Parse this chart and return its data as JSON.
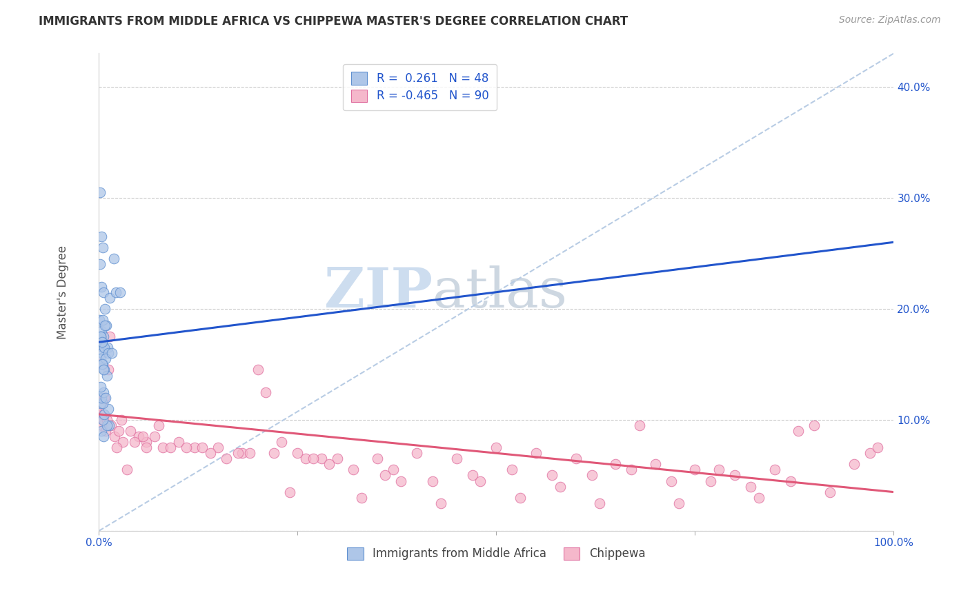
{
  "title": "IMMIGRANTS FROM MIDDLE AFRICA VS CHIPPEWA MASTER'S DEGREE CORRELATION CHART",
  "source": "Source: ZipAtlas.com",
  "ylabel": "Master's Degree",
  "blue_R": 0.261,
  "blue_N": 48,
  "pink_R": -0.465,
  "pink_N": 90,
  "blue_color": "#aec6e8",
  "pink_color": "#f5b8cb",
  "blue_edge_color": "#6090d0",
  "pink_edge_color": "#e070a0",
  "blue_line_color": "#2255cc",
  "pink_line_color": "#e05878",
  "ref_line_color": "#b8cce4",
  "watermark_zip_color": "#c5d8ed",
  "watermark_atlas_color": "#c5d0dc",
  "legend_label_blue": "Immigrants from Middle Africa",
  "legend_label_pink": "Chippewa",
  "xlim": [
    0.0,
    100.0
  ],
  "ylim": [
    0.0,
    43.0
  ],
  "blue_trend_x0": 0.0,
  "blue_trend_y0": 17.0,
  "blue_trend_x1": 100.0,
  "blue_trend_y1": 26.0,
  "pink_trend_x0": 0.0,
  "pink_trend_y0": 10.5,
  "pink_trend_x1": 100.0,
  "pink_trend_y1": 3.5,
  "blue_scatter_x": [
    0.15,
    0.5,
    0.3,
    0.1,
    0.4,
    0.6,
    0.9,
    1.1,
    0.25,
    0.45,
    0.7,
    1.0,
    0.2,
    0.35,
    0.55,
    1.4,
    1.9,
    0.12,
    0.28,
    0.48,
    2.1,
    0.18,
    0.38,
    0.65,
    1.2,
    0.8,
    0.42,
    0.22,
    0.52,
    0.75,
    1.3,
    0.32,
    0.58,
    1.05,
    0.45,
    0.68,
    1.15,
    0.27,
    0.47,
    2.7,
    0.35,
    0.62,
    0.82,
    0.25,
    0.55,
    1.6,
    0.38,
    0.72
  ],
  "blue_scatter_y": [
    17.0,
    16.5,
    18.0,
    19.0,
    16.0,
    17.5,
    18.5,
    16.5,
    15.5,
    15.0,
    14.5,
    14.0,
    17.5,
    22.0,
    21.5,
    21.0,
    24.5,
    24.0,
    26.5,
    25.5,
    21.5,
    30.5,
    17.0,
    16.5,
    16.0,
    15.5,
    15.0,
    17.5,
    19.0,
    20.0,
    9.5,
    9.0,
    8.5,
    9.5,
    10.0,
    10.5,
    11.0,
    11.5,
    11.5,
    21.5,
    12.0,
    12.5,
    12.0,
    13.0,
    14.5,
    16.0,
    17.0,
    18.5
  ],
  "pink_scatter_x": [
    0.2,
    0.4,
    0.6,
    0.8,
    1.0,
    1.5,
    2.0,
    2.5,
    3.0,
    4.0,
    5.0,
    6.0,
    7.0,
    8.0,
    10.0,
    12.0,
    15.0,
    18.0,
    20.0,
    22.0,
    25.0,
    28.0,
    30.0,
    35.0,
    40.0,
    45.0,
    50.0,
    55.0,
    60.0,
    65.0,
    70.0,
    75.0,
    80.0,
    85.0,
    90.0,
    95.0,
    0.3,
    0.7,
    1.2,
    2.2,
    3.5,
    4.5,
    5.5,
    7.5,
    9.0,
    11.0,
    13.0,
    16.0,
    19.0,
    21.0,
    23.0,
    26.0,
    29.0,
    32.0,
    37.0,
    42.0,
    47.0,
    52.0,
    57.0,
    62.0,
    67.0,
    72.0,
    77.0,
    82.0,
    87.0,
    92.0,
    97.0,
    0.1,
    0.6,
    1.4,
    2.8,
    6.0,
    14.0,
    24.0,
    38.0,
    48.0,
    58.0,
    68.0,
    78.0,
    88.0,
    98.0,
    33.0,
    43.0,
    53.0,
    63.0,
    73.0,
    83.0,
    17.5,
    27.0,
    36.0
  ],
  "pink_scatter_y": [
    10.5,
    9.5,
    10.0,
    9.0,
    10.0,
    9.5,
    8.5,
    9.0,
    8.0,
    9.0,
    8.5,
    8.0,
    8.5,
    7.5,
    8.0,
    7.5,
    7.5,
    7.0,
    14.5,
    7.0,
    7.0,
    6.5,
    6.5,
    6.5,
    7.0,
    6.5,
    7.5,
    7.0,
    6.5,
    6.0,
    6.0,
    5.5,
    5.0,
    5.5,
    9.5,
    6.0,
    11.5,
    12.0,
    14.5,
    7.5,
    5.5,
    8.0,
    8.5,
    9.5,
    7.5,
    7.5,
    7.5,
    6.5,
    7.0,
    12.5,
    8.0,
    6.5,
    6.0,
    5.5,
    5.5,
    4.5,
    5.0,
    5.5,
    5.0,
    5.0,
    5.5,
    4.5,
    4.5,
    4.0,
    4.5,
    3.5,
    7.0,
    15.0,
    10.5,
    17.5,
    10.0,
    7.5,
    7.0,
    3.5,
    4.5,
    4.5,
    4.0,
    9.5,
    5.5,
    9.0,
    7.5,
    3.0,
    2.5,
    3.0,
    2.5,
    2.5,
    3.0,
    7.0,
    6.5,
    5.0
  ],
  "ytick_vals": [
    0,
    10,
    20,
    30,
    40
  ],
  "ytick_labels_right": [
    "",
    "10.0%",
    "20.0%",
    "30.0%",
    "40.0%"
  ],
  "grid_color": "#cccccc",
  "background_color": "#ffffff",
  "title_fontsize": 12,
  "source_fontsize": 10,
  "tick_label_fontsize": 11,
  "ylabel_fontsize": 12
}
